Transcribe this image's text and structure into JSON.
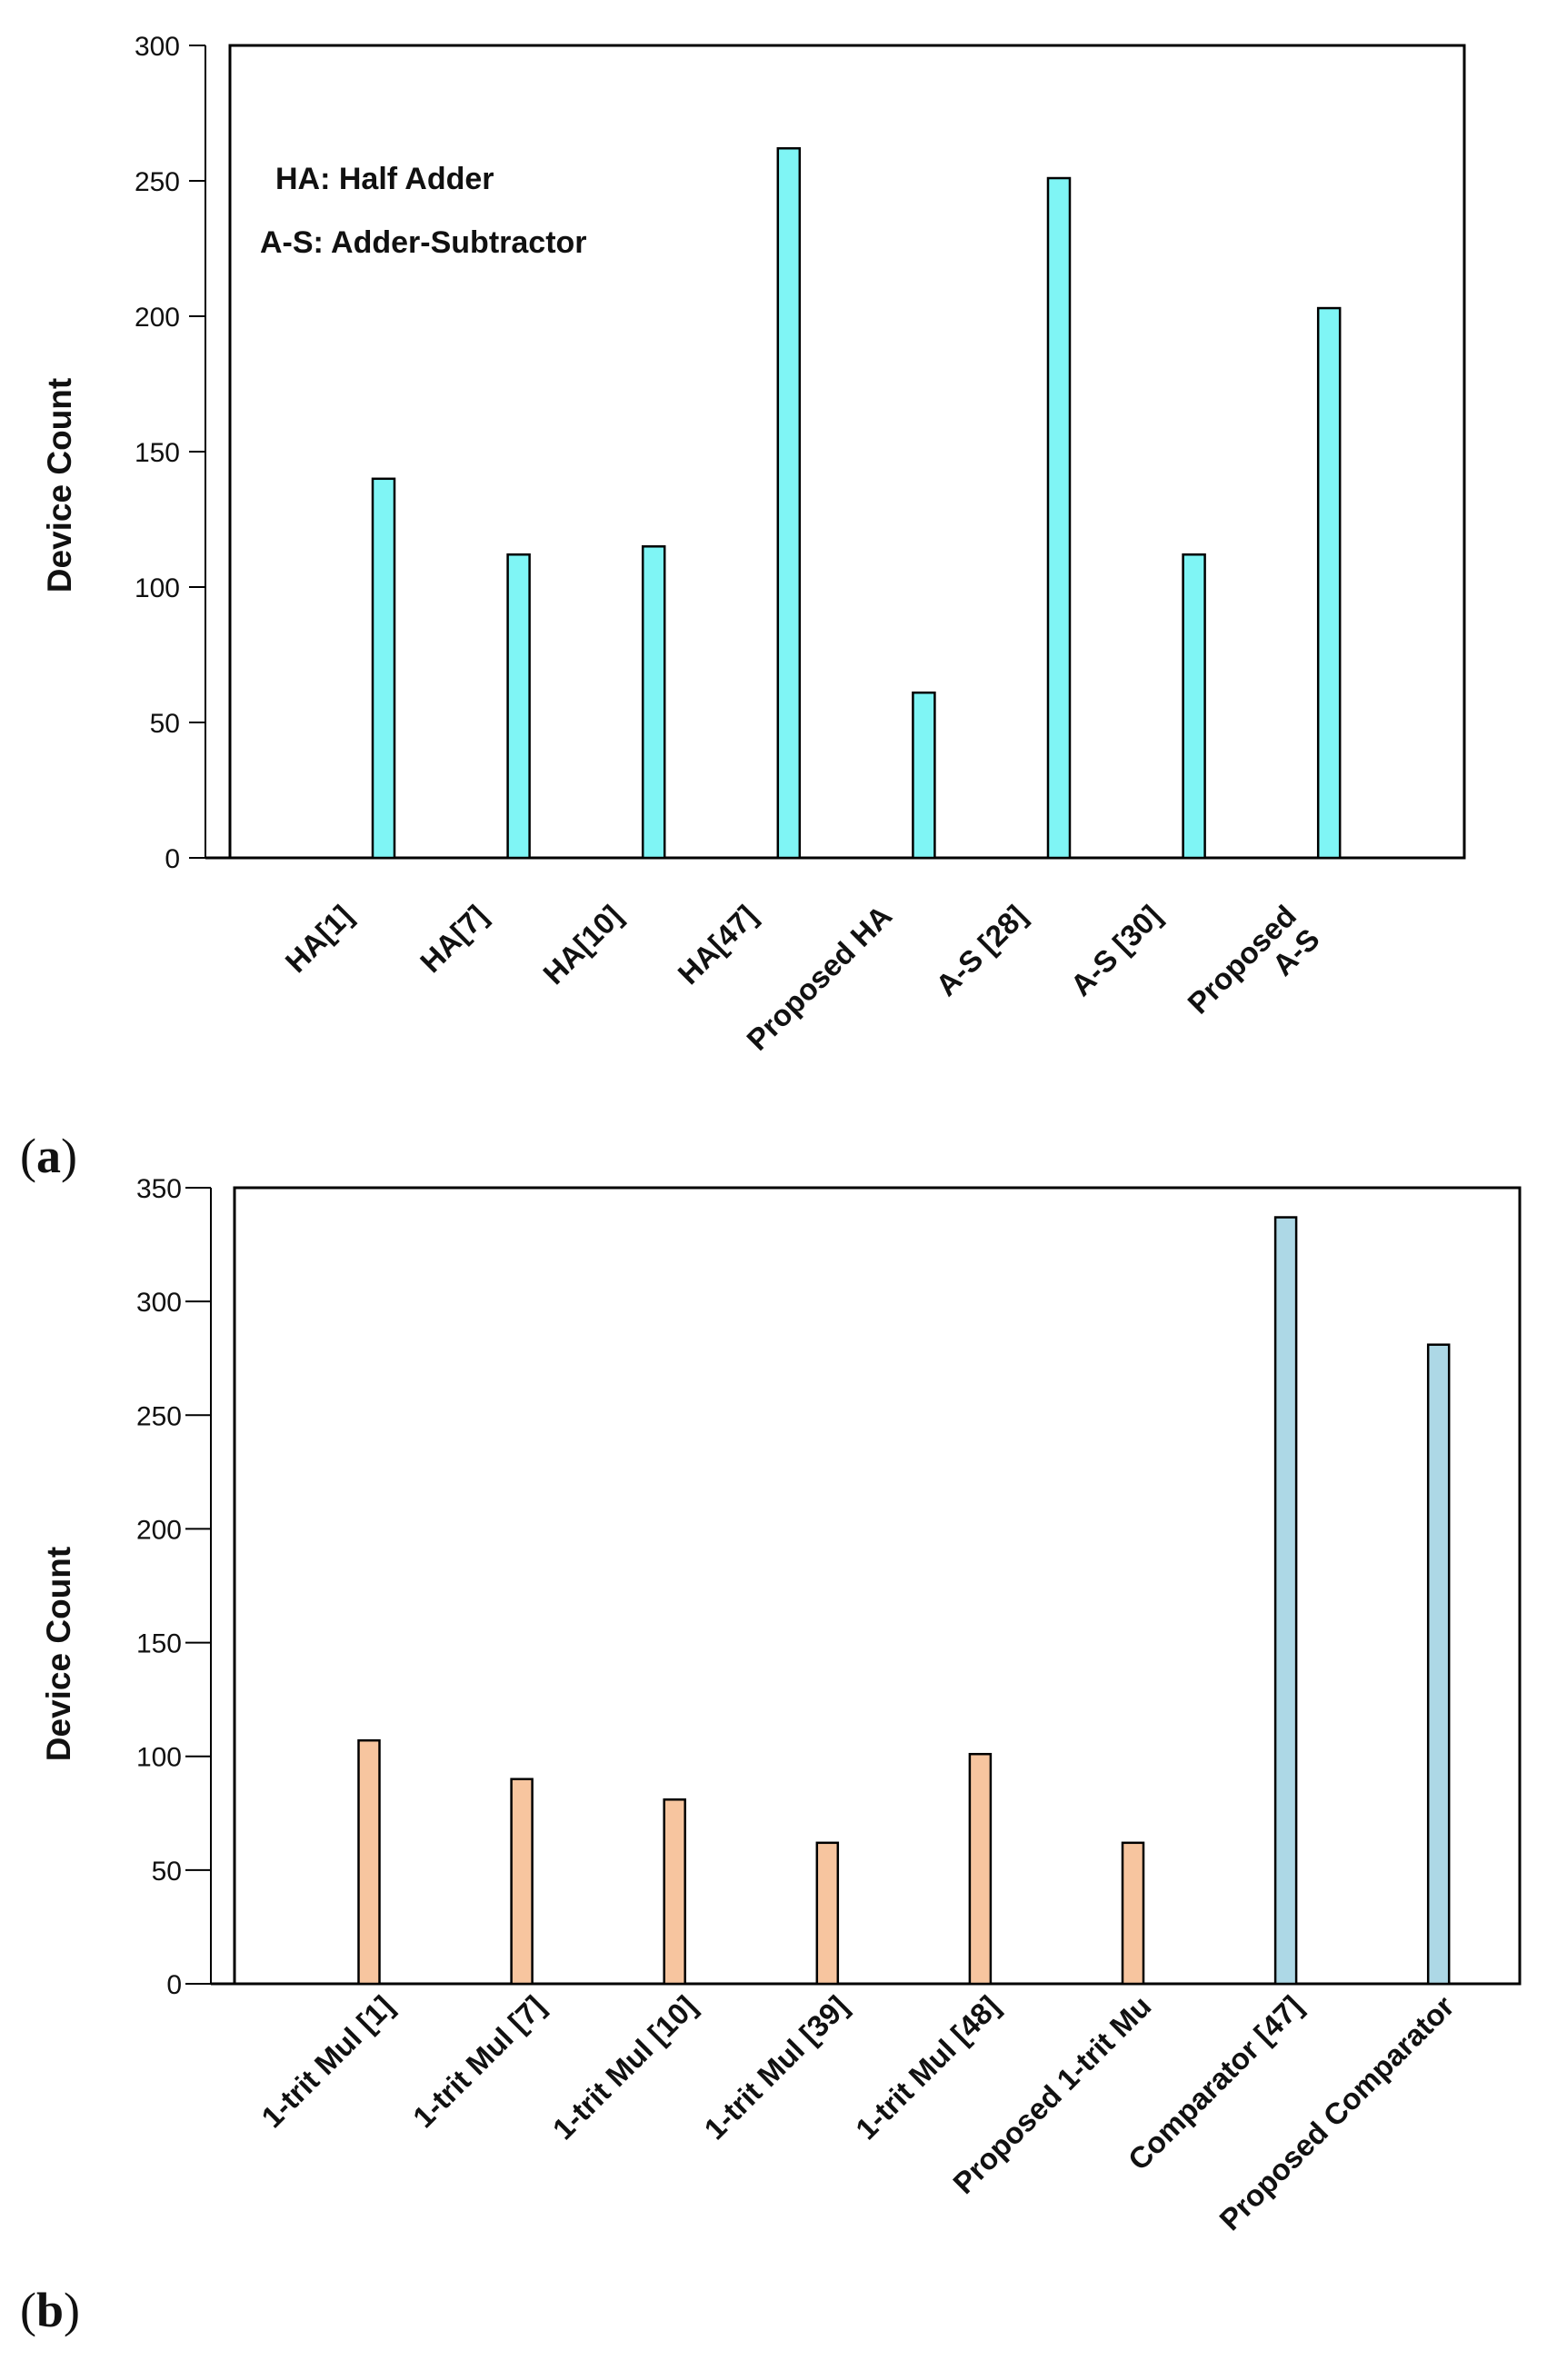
{
  "chart_data": [
    {
      "type": "bar",
      "panel_label": "a",
      "ylabel": "Device Count",
      "ylim": [
        0,
        300
      ],
      "yticks": [
        0,
        50,
        100,
        150,
        200,
        250,
        300
      ],
      "grid": false,
      "annotations": [
        "HA: Half Adder",
        "A-S: Adder-Subtractor"
      ],
      "categories": [
        "HA[1]",
        "HA[7]",
        "HA[10]",
        "HA[47]",
        "Proposed HA",
        "A-S [28]",
        "A-S [30]",
        "Proposed\nA-S"
      ],
      "values": [
        140,
        112,
        115,
        262,
        61,
        251,
        112,
        203
      ],
      "colors": [
        "#7ff5f5",
        "#7ff5f5",
        "#7ff5f5",
        "#7ff5f5",
        "#7ff5f5",
        "#7ff5f5",
        "#7ff5f5",
        "#7ff5f5"
      ]
    },
    {
      "type": "bar",
      "panel_label": "b",
      "ylabel": "Device Count",
      "ylim": [
        0,
        350
      ],
      "yticks": [
        0,
        50,
        100,
        150,
        200,
        250,
        300,
        350
      ],
      "grid": false,
      "annotations": [],
      "categories": [
        "1-trit Mul [1]",
        "1-trit Mul [7]",
        "1-trit Mul [10]",
        "1-trit Mul [39]",
        "1-trit Mul [48]",
        "Proposed  1-trit Mu",
        "Comparator [47]",
        "Proposed  Comparator"
      ],
      "values": [
        107,
        90,
        81,
        62,
        101,
        62,
        337,
        281
      ],
      "colors": [
        "#f7c59f",
        "#f7c59f",
        "#f7c59f",
        "#f7c59f",
        "#f7c59f",
        "#f7c59f",
        "#add8e6",
        "#add8e6"
      ]
    }
  ]
}
